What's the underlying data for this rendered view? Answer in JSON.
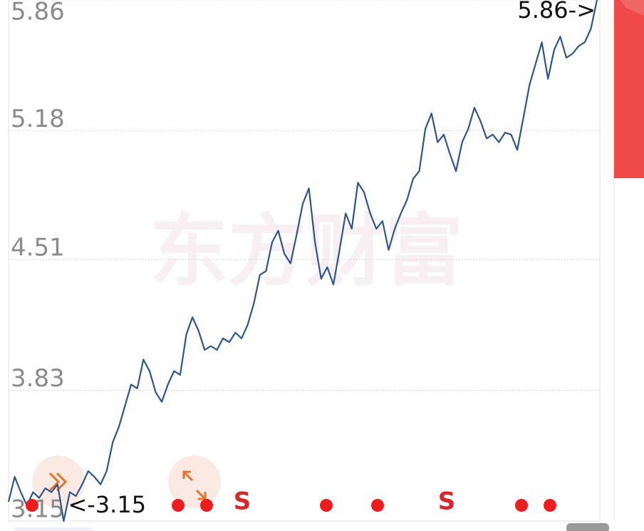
{
  "chart_data": {
    "type": "line",
    "values": [
      3.25,
      3.38,
      3.3,
      3.23,
      3.3,
      3.27,
      3.32,
      3.3,
      3.34,
      3.15,
      3.3,
      3.28,
      3.34,
      3.41,
      3.38,
      3.34,
      3.41,
      3.56,
      3.64,
      3.75,
      3.86,
      3.84,
      3.99,
      3.93,
      3.82,
      3.77,
      3.86,
      3.93,
      3.91,
      4.12,
      4.21,
      4.14,
      4.04,
      4.06,
      4.04,
      4.1,
      4.08,
      4.13,
      4.1,
      4.17,
      4.28,
      4.43,
      4.45,
      4.6,
      4.66,
      4.54,
      4.49,
      4.64,
      4.8,
      4.88,
      4.6,
      4.41,
      4.47,
      4.38,
      4.56,
      4.75,
      4.67,
      4.91,
      4.86,
      4.75,
      4.67,
      4.71,
      4.56,
      4.67,
      4.75,
      4.82,
      4.93,
      4.97,
      5.19,
      5.27,
      5.12,
      5.16,
      5.06,
      4.97,
      5.12,
      5.19,
      5.3,
      5.23,
      5.14,
      5.16,
      5.12,
      5.17,
      5.16,
      5.08,
      5.25,
      5.42,
      5.53,
      5.64,
      5.45,
      5.6,
      5.67,
      5.56,
      5.58,
      5.62,
      5.64,
      5.71,
      5.86
    ],
    "color": "#2c5592",
    "ylim": [
      3.15,
      5.86
    ],
    "yticks": [
      5.86,
      5.18,
      4.51,
      3.83,
      3.15
    ],
    "grid": true,
    "annotations": [
      "5.86->",
      "<-3.15",
      "S",
      "S"
    ],
    "watermark": "东方财富"
  }
}
